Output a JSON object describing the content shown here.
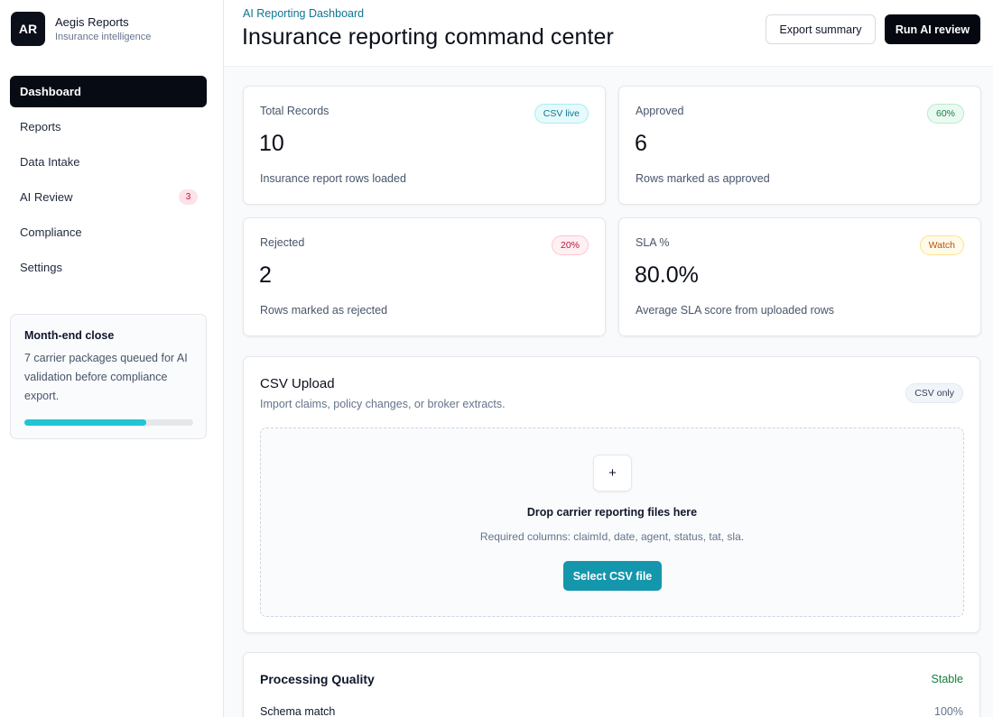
{
  "brand": {
    "logo": "AR",
    "name": "Aegis Reports",
    "subtitle": "Insurance intelligence"
  },
  "nav": [
    {
      "label": "Dashboard",
      "active": true
    },
    {
      "label": "Reports"
    },
    {
      "label": "Data Intake"
    },
    {
      "label": "AI Review",
      "badge": "3"
    },
    {
      "label": "Compliance"
    },
    {
      "label": "Settings"
    }
  ],
  "close_card": {
    "title": "Month-end close",
    "description": "7 carrier packages queued for AI validation before compliance export.",
    "progress": 0.72
  },
  "header": {
    "eyebrow": "AI Reporting Dashboard",
    "title": "Insurance reporting command center",
    "export_label": "Export summary",
    "run_label": "Run AI review"
  },
  "stats": [
    {
      "label": "Total Records",
      "value": "10",
      "note": "Insurance report rows loaded",
      "pill": "CSV live",
      "pill_color": "cyan"
    },
    {
      "label": "Approved",
      "value": "6",
      "note": "Rows marked as approved",
      "pill": "60%",
      "pill_color": "green"
    },
    {
      "label": "Rejected",
      "value": "2",
      "note": "Rows marked as rejected",
      "pill": "20%",
      "pill_color": "red"
    },
    {
      "label": "SLA %",
      "value": "80.0%",
      "note": "Average SLA score from uploaded rows",
      "pill": "Watch",
      "pill_color": "amber"
    }
  ],
  "upload": {
    "title": "CSV Upload",
    "subtitle": "Import claims, policy changes, or broker extracts.",
    "pill": "CSV only",
    "plus": "+",
    "drop_title": "Drop carrier reporting files here",
    "requirements": "Required columns: claimId, date, agent, status, tat, sla.",
    "button": "Select CSV file"
  },
  "quality": {
    "title": "Processing Quality",
    "status": "Stable",
    "rows": [
      {
        "label": "Schema match",
        "value": "100%"
      }
    ]
  }
}
